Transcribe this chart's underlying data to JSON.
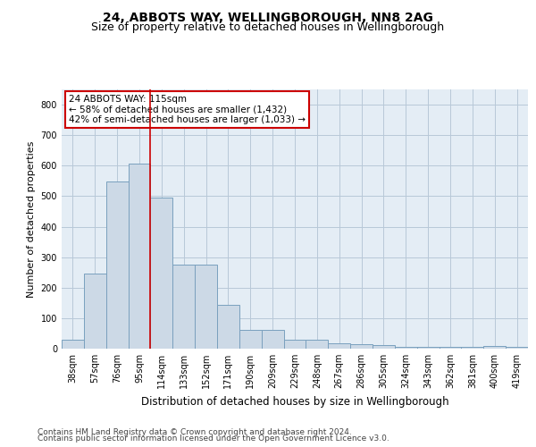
{
  "title_line1": "24, ABBOTS WAY, WELLINGBOROUGH, NN8 2AG",
  "title_line2": "Size of property relative to detached houses in Wellingborough",
  "xlabel": "Distribution of detached houses by size in Wellingborough",
  "ylabel": "Number of detached properties",
  "categories": [
    "38sqm",
    "57sqm",
    "76sqm",
    "95sqm",
    "114sqm",
    "133sqm",
    "152sqm",
    "171sqm",
    "190sqm",
    "209sqm",
    "229sqm",
    "248sqm",
    "267sqm",
    "286sqm",
    "305sqm",
    "324sqm",
    "343sqm",
    "362sqm",
    "381sqm",
    "400sqm",
    "419sqm"
  ],
  "values": [
    30,
    245,
    548,
    608,
    495,
    275,
    275,
    143,
    62,
    62,
    30,
    30,
    18,
    15,
    12,
    5,
    5,
    5,
    5,
    8,
    5
  ],
  "bar_color": "#ccd9e6",
  "bar_edge_color": "#7aa0be",
  "annotation_text": "24 ABBOTS WAY: 115sqm\n← 58% of detached houses are smaller (1,432)\n42% of semi-detached houses are larger (1,033) →",
  "annotation_box_color": "#ffffff",
  "annotation_box_edge": "#cc0000",
  "vline_x_index": 4.0,
  "footer_line1": "Contains HM Land Registry data © Crown copyright and database right 2024.",
  "footer_line2": "Contains public sector information licensed under the Open Government Licence v3.0.",
  "ylim": [
    0,
    850
  ],
  "yticks": [
    0,
    100,
    200,
    300,
    400,
    500,
    600,
    700,
    800
  ],
  "grid_color": "#b8c8d8",
  "bg_color": "#e4edf5",
  "title_fontsize": 10,
  "subtitle_fontsize": 9,
  "ylabel_fontsize": 8,
  "xlabel_fontsize": 8.5,
  "tick_fontsize": 7,
  "footer_fontsize": 6.5,
  "ann_fontsize": 7.5
}
